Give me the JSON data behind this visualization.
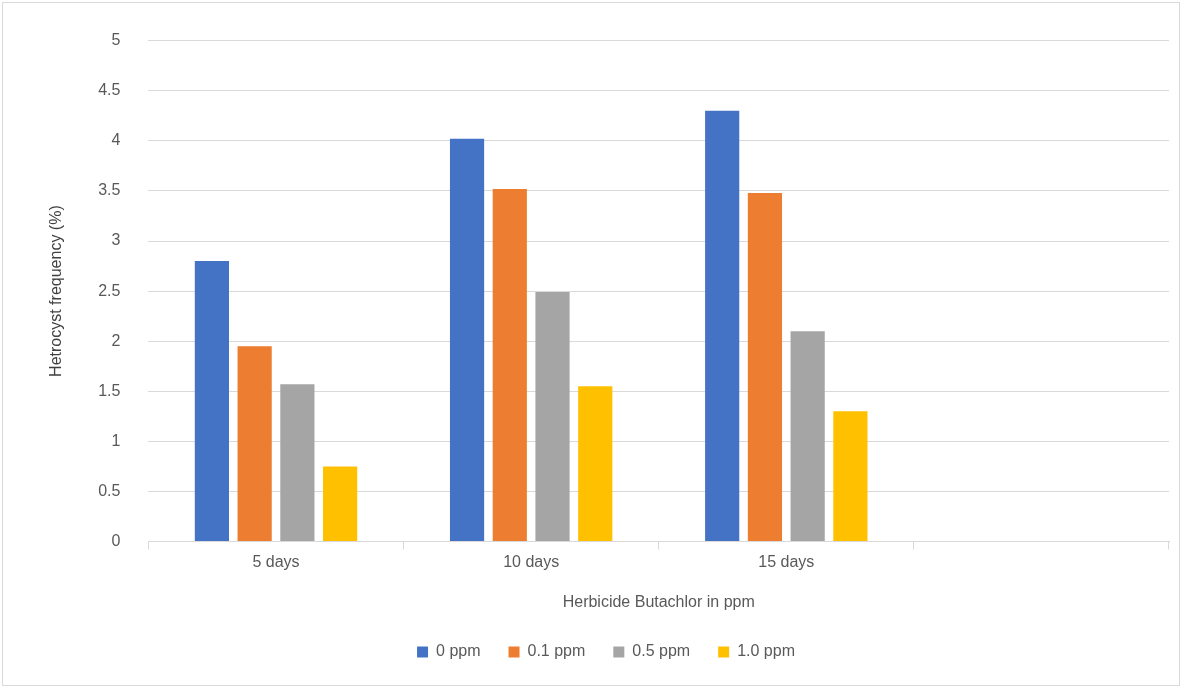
{
  "chart_data": {
    "type": "bar",
    "xlabel": "Herbicide Butachlor in ppm",
    "ylabel": "Hetrocyst frequency (%)",
    "categories": [
      "5 days",
      "10 days",
      "15 days",
      null
    ],
    "series": [
      {
        "name": "0 ppm",
        "color": "#4472c4",
        "values": [
          2.8,
          4.02,
          4.3,
          null
        ]
      },
      {
        "name": "0.1 ppm",
        "color": "#ed7d31",
        "values": [
          1.95,
          3.52,
          3.48,
          null
        ]
      },
      {
        "name": "0.5 ppm",
        "color": "#a5a5a5",
        "values": [
          1.57,
          2.49,
          2.1,
          null
        ]
      },
      {
        "name": "1.0 ppm",
        "color": "#ffc000",
        "values": [
          0.75,
          1.55,
          1.3,
          null
        ]
      }
    ],
    "ylim": [
      0,
      5
    ],
    "yticks": [
      0,
      0.5,
      1,
      1.5,
      2,
      2.5,
      3,
      3.5,
      4,
      4.5,
      5
    ],
    "grid": "y",
    "legend": "bottom"
  }
}
